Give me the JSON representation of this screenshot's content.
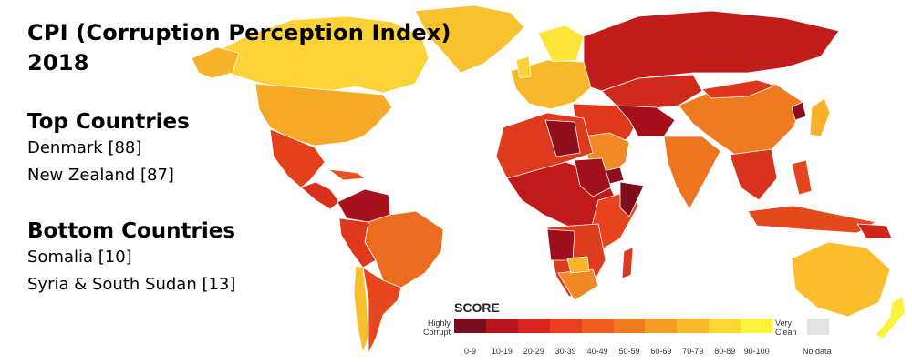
{
  "title": {
    "line1": "CPI (Corruption Perception Index)",
    "line2": "2018"
  },
  "top": {
    "heading": "Top Countries",
    "items": [
      "Denmark [88]",
      "New Zealand [87]"
    ]
  },
  "bottom": {
    "heading": "Bottom Countries",
    "items": [
      "Somalia [10]",
      "Syria & South Sudan [13]"
    ]
  },
  "legend": {
    "title": "SCORE",
    "low_label": "Highly Corrupt",
    "high_label": "Very Clean",
    "nodata_label": "No data",
    "bins": [
      "0-9",
      "10-19",
      "20-29",
      "30-39",
      "40-49",
      "50-59",
      "60-69",
      "70-79",
      "80-89",
      "90-100"
    ],
    "colors": [
      "#7a0d1e",
      "#b5151b",
      "#d9261c",
      "#e8401e",
      "#ed5f1e",
      "#f07c21",
      "#f59a25",
      "#fab92b",
      "#fdd835",
      "#fff23a"
    ],
    "nodata_color": "#e3e3e3"
  }
}
